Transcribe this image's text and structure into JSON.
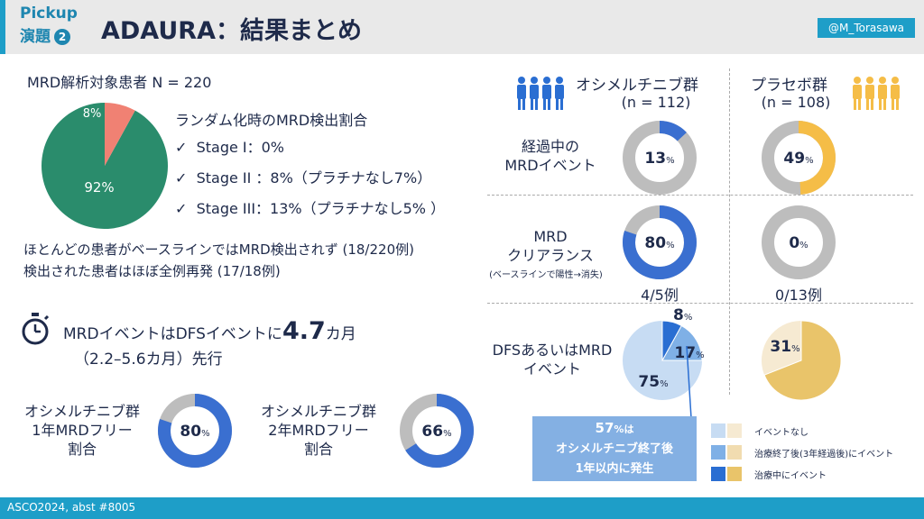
{
  "header": {
    "pickup": "Pickup",
    "enshu": "演題",
    "enshu_num": "2",
    "title": "ADAURA：結果まとめ",
    "handle": "@M_Torasawa"
  },
  "footer": {
    "text": "ASCO2024, abst #8005"
  },
  "mrd_section": {
    "population": "MRD解析対象患者 N = 220",
    "pie": {
      "detected_pct": 8,
      "not_detected_pct": 92,
      "detected_label": "8%",
      "not_detected_label": "92%"
    },
    "heading": "ランダム化時のMRD検出割合",
    "stages": [
      {
        "check": "✓",
        "text": "Stage I：0%"
      },
      {
        "check": "✓",
        "text": "Stage II ：8%（プラチナなし7%）"
      },
      {
        "check": "✓",
        "text": "Stage III：13%（プラチナなし5% ）"
      }
    ],
    "note1": "ほとんどの患者がベースラインではMRD検出されず (18/220例)",
    "note2": "検出された患者はほぼ全例再発 (17/18例)"
  },
  "lead_time": {
    "prefix": "MRDイベントはDFSイベントに",
    "value": "4.7",
    "suffix": "カ月",
    "range": "（2.2–5.6カ月）先行"
  },
  "osimertinib_free": [
    {
      "label": "オシメルチニブ群\n1年MRDフリー\n割合",
      "pct": 80,
      "pct_label": "80",
      "pct_unit": "%"
    },
    {
      "label": "オシメルチニブ群\n2年MRDフリー\n割合",
      "pct": 66,
      "pct_label": "66",
      "pct_unit": "%"
    }
  ],
  "groups": {
    "osimertinib": {
      "name": "オシメルチニブ群",
      "n": "(n = 112)"
    },
    "placebo": {
      "name": "プラセボ群",
      "n": "(n = 108)"
    }
  },
  "rows": [
    {
      "label": "経過中の\nMRDイベント",
      "sub": "",
      "osi": {
        "pct": 13,
        "label": "13",
        "unit": "%",
        "footnote": ""
      },
      "pla": {
        "pct": 49,
        "label": "49",
        "unit": "%",
        "footnote": ""
      }
    },
    {
      "label": "MRD\nクリアランス",
      "sub": "(ベースラインで陽性→消失)",
      "osi": {
        "pct": 80,
        "label": "80",
        "unit": "%",
        "footnote": "4/5例"
      },
      "pla": {
        "pct": 0,
        "label": "0",
        "unit": "%",
        "footnote": "0/13例"
      }
    }
  ],
  "dfs_row": {
    "label": "DFSあるいはMRD\nイベント",
    "osi": {
      "segments": [
        75,
        17,
        8
      ],
      "labels": [
        "75",
        "17",
        "8"
      ],
      "unit": "%"
    },
    "pla": {
      "segments": [
        69,
        31
      ],
      "labels": [
        "31"
      ],
      "unit": "%"
    }
  },
  "callout": {
    "line1_value": "57",
    "line1_unit": "%は",
    "line2": "オシメルチニブ終了後",
    "line3": "1年以内に発生"
  },
  "legend": [
    {
      "label": "イベントなし",
      "osi_color": "#c7dcf3",
      "pla_color": "#f6ead2"
    },
    {
      "label": "治療終了後(3年経過後)にイベント",
      "osi_color": "#7fb0e6",
      "pla_color": "#f1dcb0"
    },
    {
      "label": "治療中にイベント",
      "osi_color": "#2a6ed2",
      "pla_color": "#e9c46a"
    }
  ],
  "colors": {
    "accent": "#1e9ec8",
    "navy": "#1e2a4a",
    "osi_blue": "#3a6fd0",
    "pla_yellow": "#f5bd47",
    "gray": "#bdbdbd",
    "green": "#2a8c6c",
    "salmon": "#f08173"
  }
}
